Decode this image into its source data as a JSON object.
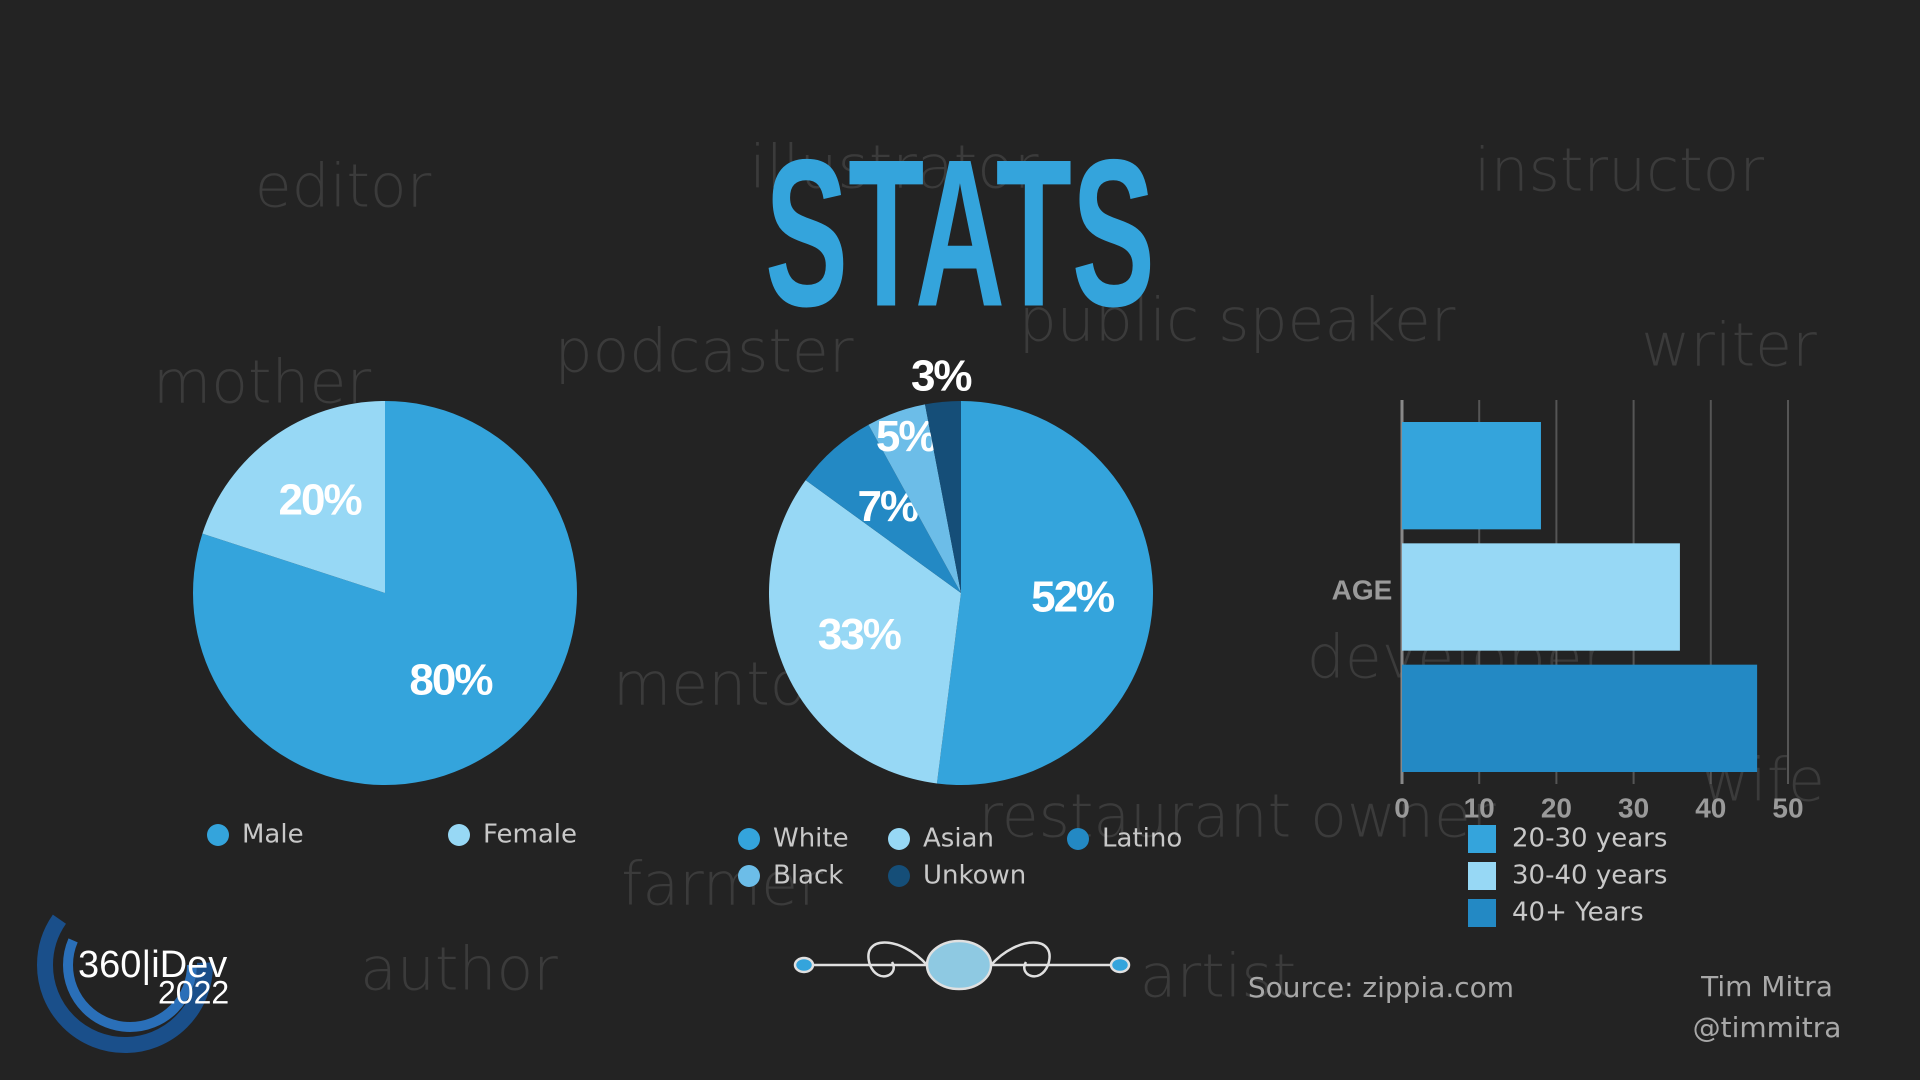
{
  "title": "STATS",
  "background_words": [
    "editor",
    "illustrator",
    "instructor",
    "podcaster",
    "public speaker",
    "writer",
    "mother",
    "mentor",
    "developer",
    "restaurant owner",
    "wife",
    "farmer",
    "author",
    "artist"
  ],
  "logo": {
    "name": "360|iDev",
    "year": "2022"
  },
  "source": "Source: zippia.com",
  "author": "Tim Mitra",
  "handle": "@timmitra",
  "chart_data": [
    {
      "type": "pie",
      "categories": [
        "Male",
        "Female"
      ],
      "values": [
        80,
        20
      ],
      "value_labels": [
        "80%",
        "20%"
      ],
      "colors": [
        "#34a4dc",
        "#97d8f5"
      ]
    },
    {
      "type": "pie",
      "categories": [
        "White",
        "Asian",
        "Latino",
        "Black",
        "Unkown"
      ],
      "values": [
        52,
        33,
        7,
        5,
        3
      ],
      "value_labels": [
        "52%",
        "33%",
        "7%",
        "5%",
        "3%"
      ],
      "colors": [
        "#34a4dc",
        "#97d8f5",
        "#2389c4",
        "#6cbde8",
        "#154e78"
      ]
    },
    {
      "type": "bar",
      "orientation": "horizontal",
      "categories": [
        "AGE"
      ],
      "series": [
        {
          "name": "20-30 years",
          "color": "#34a4dc",
          "values": [
            18
          ]
        },
        {
          "name": "30-40 years",
          "color": "#97d8f5",
          "values": [
            36
          ]
        },
        {
          "name": "40+ Years",
          "color": "#2389c4",
          "values": [
            46
          ]
        }
      ],
      "xlim": [
        0,
        50
      ],
      "xticks": [
        0,
        10,
        20,
        30,
        40,
        50
      ],
      "grid": true
    }
  ]
}
